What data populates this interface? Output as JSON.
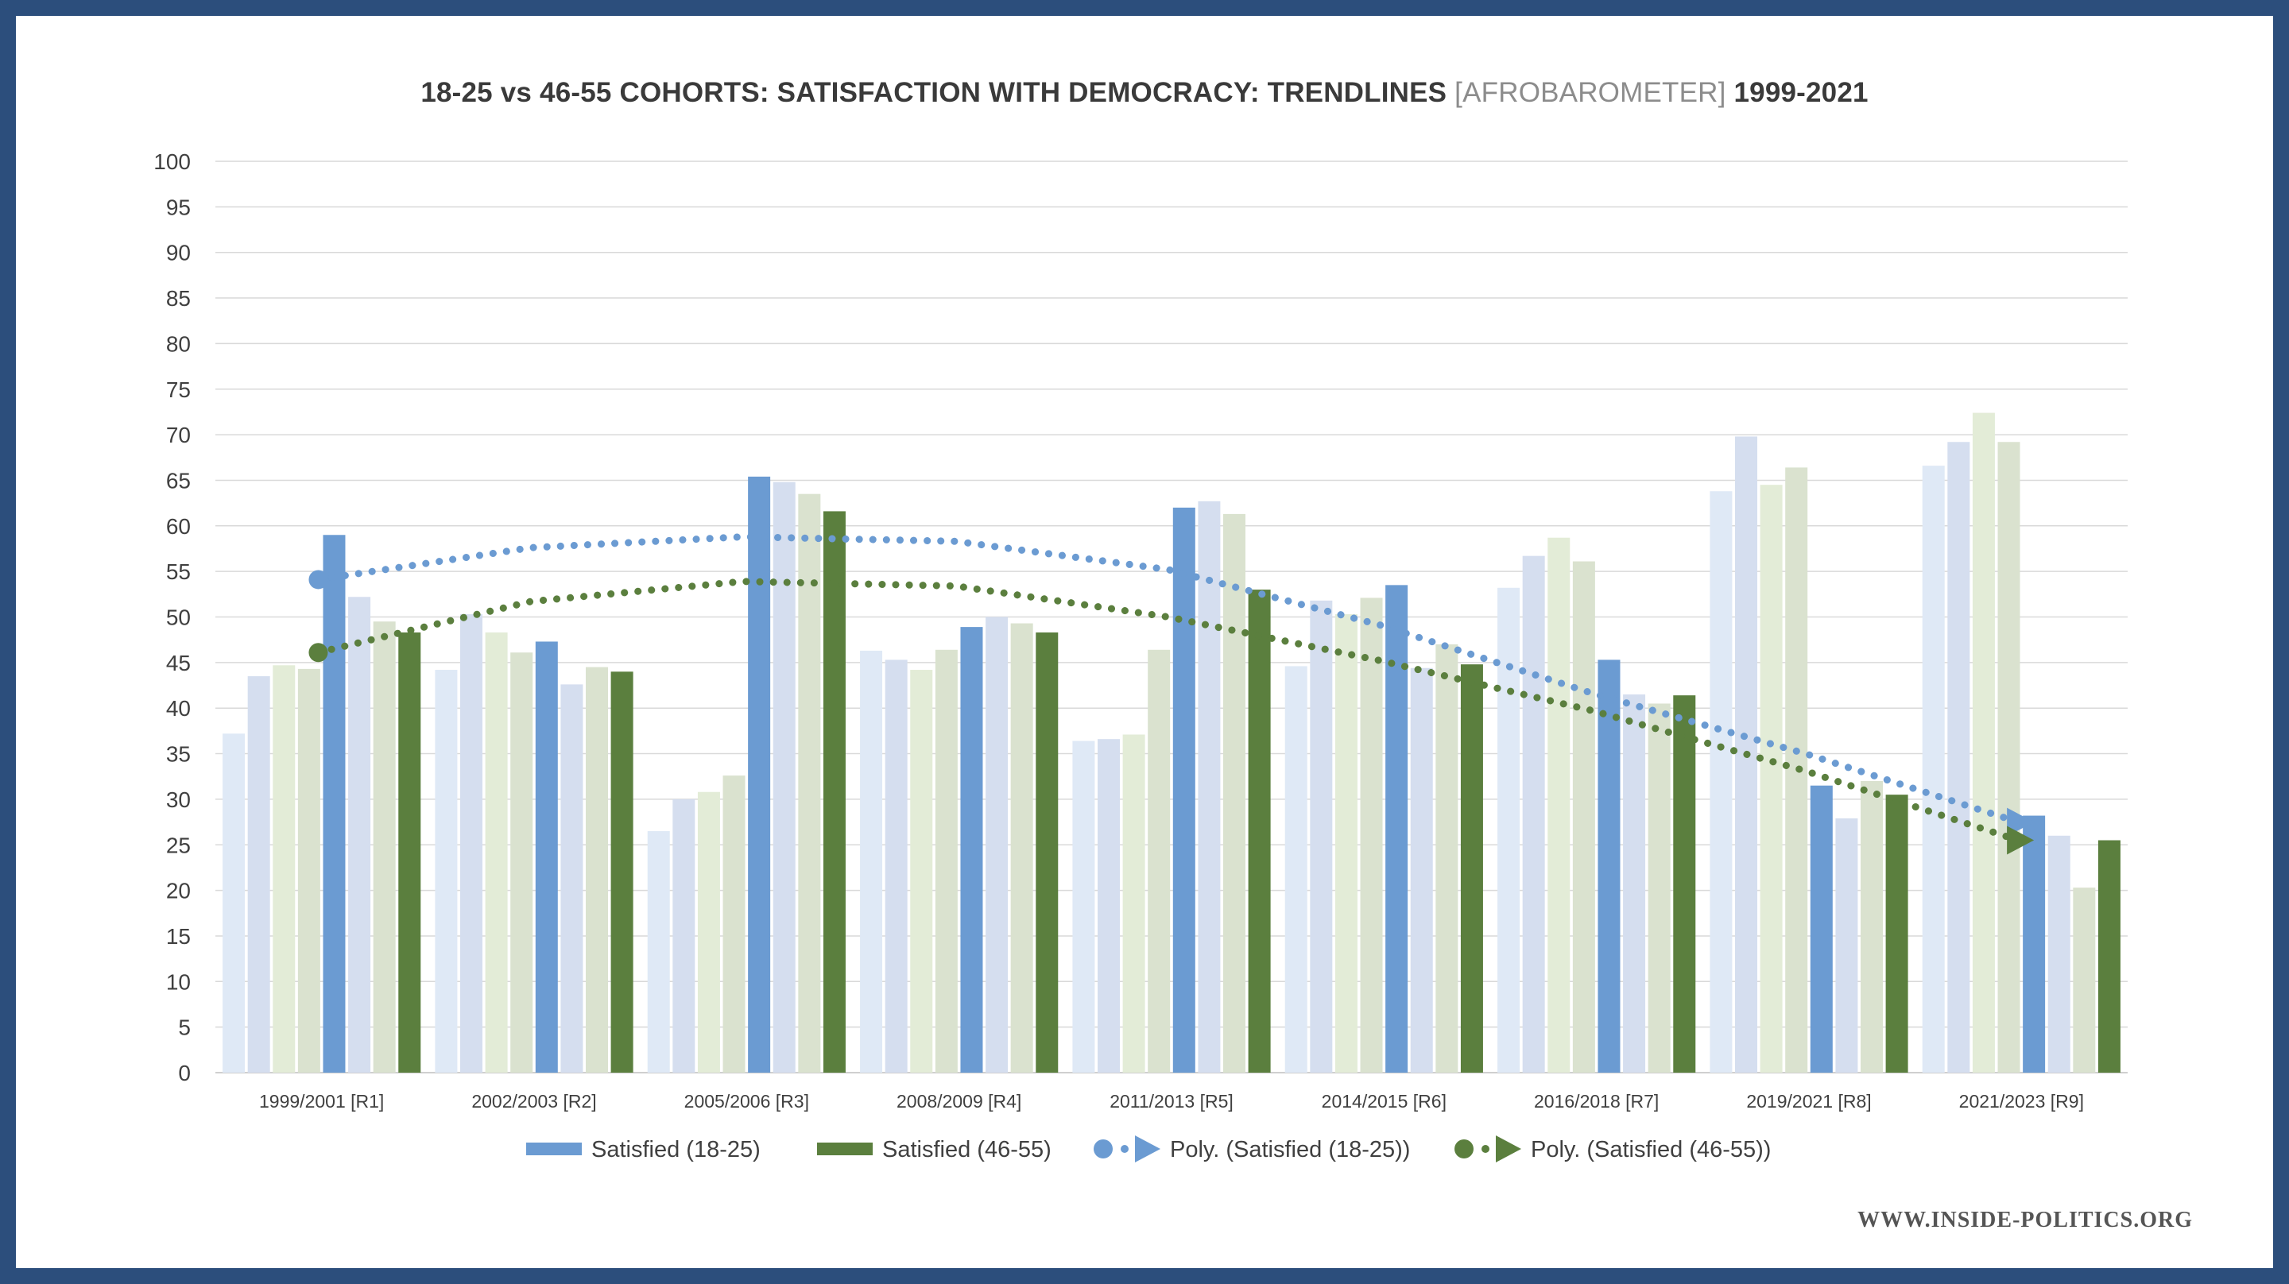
{
  "chart_data": {
    "type": "bar",
    "title_main": "18-25 vs 46-55 COHORTS: SATISFACTION WITH DEMOCRACY: TRENDLINES",
    "title_source": "[AFROBAROMETER]",
    "title_years": "1999-2021",
    "ylim": [
      0,
      100
    ],
    "ytick_step": 5,
    "grid": true,
    "legend_position": "bottom",
    "categories": [
      "1999/2001 [R1]",
      "2002/2003 [R2]",
      "2005/2006 [R3]",
      "2008/2009 [R4]",
      "2011/2013 [R5]",
      "2014/2015 [R6]",
      "2016/2018 [R7]",
      "2019/2021 [R8]",
      "2021/2023 [R9]"
    ],
    "background_bars": [
      [
        37.2,
        43.5,
        44.7,
        44.3
      ],
      [
        44.2,
        50.3,
        48.3,
        46.1
      ],
      [
        26.5,
        30.0,
        30.8,
        32.6
      ],
      [
        46.3,
        45.3,
        44.2,
        46.4
      ],
      [
        36.4,
        36.6,
        37.1,
        46.4
      ],
      [
        44.6,
        51.8,
        50.3,
        52.1
      ],
      [
        53.2,
        56.7,
        58.7,
        56.1
      ],
      [
        63.8,
        69.8,
        64.5,
        66.4
      ],
      [
        66.6,
        69.2,
        72.4,
        69.2
      ]
    ],
    "background_bars_after": [
      [
        52.2,
        49.5
      ],
      [
        42.6,
        44.5
      ],
      [
        64.8,
        63.5
      ],
      [
        50.0,
        49.3
      ],
      [
        62.7,
        61.3
      ],
      [
        44.4,
        47.0
      ],
      [
        41.5,
        40.5
      ],
      [
        27.9,
        32.0
      ],
      [
        26.0,
        20.3
      ]
    ],
    "series": [
      {
        "name": "Satisfied (18-25)",
        "color": "#6b9bd2",
        "values": [
          59.0,
          47.3,
          65.4,
          48.9,
          62.0,
          53.5,
          45.3,
          31.5,
          28.2
        ]
      },
      {
        "name": "Satisfied (46-55)",
        "color": "#5b7f3e",
        "values": [
          48.3,
          44.0,
          61.6,
          48.3,
          53.0,
          44.8,
          41.4,
          30.5,
          25.5
        ]
      }
    ],
    "trendlines": [
      {
        "name": "Poly. (Satisfied (18-25))",
        "color": "#6b9bd2",
        "values": [
          54.1,
          57.6,
          58.8,
          58.3,
          55.2,
          49.1,
          41.6,
          35.0,
          27.5
        ]
      },
      {
        "name": "Poly. (Satisfied (46-55))",
        "color": "#5b7f3e",
        "values": [
          46.1,
          51.7,
          53.9,
          53.4,
          50.0,
          45.2,
          39.7,
          33.1,
          25.5
        ]
      }
    ],
    "legend": [
      "Satisfied (18-25)",
      "Satisfied (46-55)",
      "Poly. (Satisfied (18-25))",
      "Poly. (Satisfied (46-55))"
    ]
  },
  "footer": {
    "site": "WWW.INSIDE-POLITICS.ORG"
  },
  "colors": {
    "frame": "#2c4e7c",
    "background_bar_palette": [
      "#dfe9f6",
      "#d5deef",
      "#e3ecd7",
      "#dae2cf"
    ],
    "grid": "#d9d9d9"
  }
}
